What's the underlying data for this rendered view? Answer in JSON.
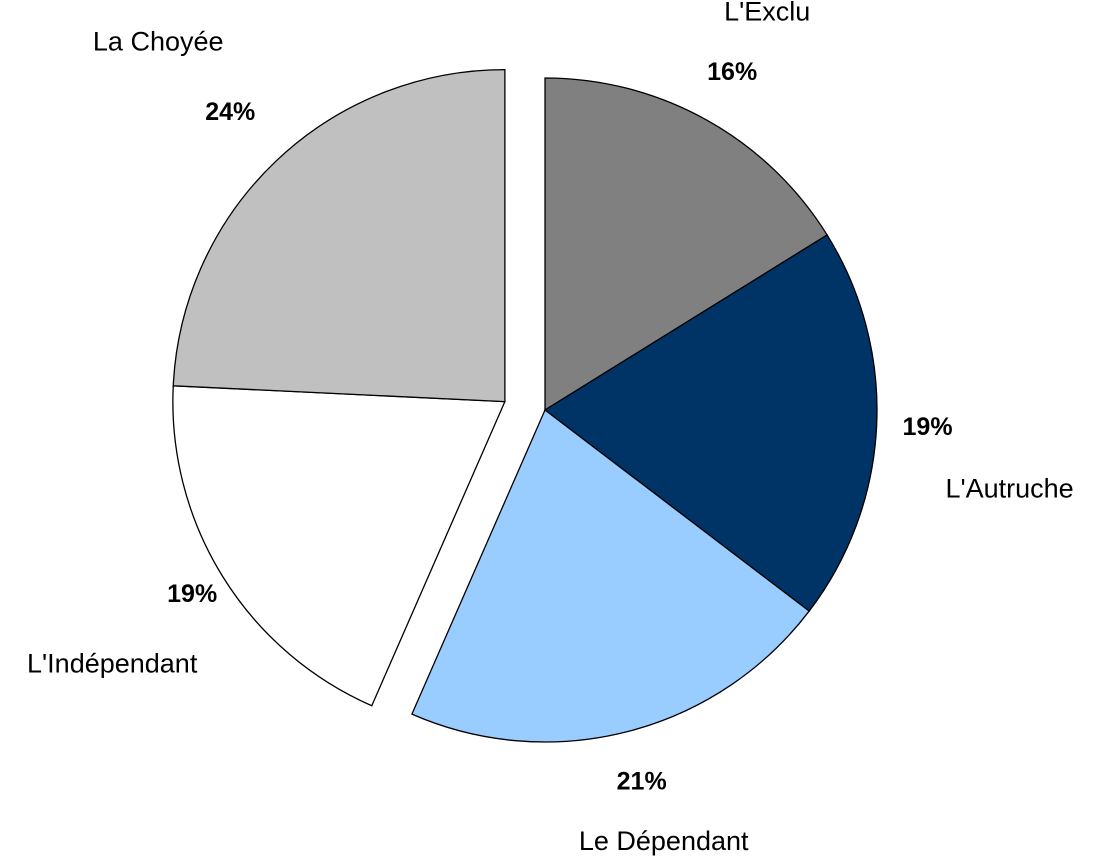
{
  "chart_data": {
    "type": "pie",
    "categories": [
      "L'Exclu",
      "L'Autruche",
      "Le Dépendant",
      "L'Indépendant",
      "La Choyée"
    ],
    "values": [
      16,
      19,
      21,
      19,
      24
    ],
    "value_labels": [
      "16%",
      "19%",
      "21%",
      "19%",
      "24%"
    ],
    "colors": [
      "#808080",
      "#003366",
      "#99ccff",
      "#ffffff",
      "#c0c0c0"
    ],
    "explode": [
      false,
      false,
      false,
      true,
      true
    ]
  }
}
